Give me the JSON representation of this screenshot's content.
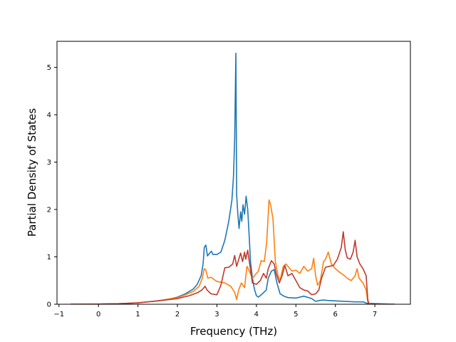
{
  "chart_data": {
    "type": "line",
    "title": "",
    "xlabel": "Frequency (THz)",
    "ylabel": "Partial Density of States",
    "xlim": [
      -1.05,
      7.9
    ],
    "ylim": [
      0,
      5.55
    ],
    "xticks": [
      -1,
      0,
      1,
      2,
      3,
      4,
      5,
      6,
      7
    ],
    "yticks": [
      0,
      1,
      2,
      3,
      4,
      5
    ],
    "grid": false,
    "legend": "none",
    "series": [
      {
        "color": "#1f77b4",
        "points": [
          [
            -0.7,
            0
          ],
          [
            0,
            0.003
          ],
          [
            0.5,
            0.01
          ],
          [
            1.0,
            0.03
          ],
          [
            1.5,
            0.07
          ],
          [
            1.8,
            0.11
          ],
          [
            2.0,
            0.15
          ],
          [
            2.2,
            0.22
          ],
          [
            2.4,
            0.32
          ],
          [
            2.5,
            0.42
          ],
          [
            2.6,
            0.6
          ],
          [
            2.65,
            0.85
          ],
          [
            2.68,
            1.2
          ],
          [
            2.72,
            1.25
          ],
          [
            2.76,
            1.02
          ],
          [
            2.82,
            1.08
          ],
          [
            2.86,
            1.12
          ],
          [
            2.9,
            1.05
          ],
          [
            3.0,
            1.05
          ],
          [
            3.1,
            1.1
          ],
          [
            3.2,
            1.35
          ],
          [
            3.3,
            1.75
          ],
          [
            3.38,
            2.2
          ],
          [
            3.42,
            2.7
          ],
          [
            3.45,
            3.5
          ],
          [
            3.48,
            5.3
          ],
          [
            3.5,
            2.3
          ],
          [
            3.53,
            1.9
          ],
          [
            3.56,
            1.6
          ],
          [
            3.6,
            1.95
          ],
          [
            3.63,
            1.75
          ],
          [
            3.66,
            2.1
          ],
          [
            3.7,
            1.9
          ],
          [
            3.74,
            2.28
          ],
          [
            3.78,
            2.0
          ],
          [
            3.82,
            1.4
          ],
          [
            3.85,
            0.9
          ],
          [
            3.9,
            0.55
          ],
          [
            3.95,
            0.32
          ],
          [
            4.0,
            0.18
          ],
          [
            4.05,
            0.15
          ],
          [
            4.15,
            0.22
          ],
          [
            4.25,
            0.3
          ],
          [
            4.3,
            0.55
          ],
          [
            4.38,
            0.7
          ],
          [
            4.45,
            0.73
          ],
          [
            4.52,
            0.45
          ],
          [
            4.6,
            0.22
          ],
          [
            4.7,
            0.17
          ],
          [
            4.8,
            0.14
          ],
          [
            5.0,
            0.13
          ],
          [
            5.2,
            0.17
          ],
          [
            5.4,
            0.12
          ],
          [
            5.5,
            0.06
          ],
          [
            5.6,
            0.08
          ],
          [
            5.7,
            0.09
          ],
          [
            5.8,
            0.08
          ],
          [
            6.0,
            0.07
          ],
          [
            6.5,
            0.05
          ],
          [
            6.7,
            0.05
          ],
          [
            6.8,
            0.02
          ],
          [
            7.5,
            0
          ]
        ]
      },
      {
        "color": "#ff7f0e",
        "points": [
          [
            -0.7,
            0
          ],
          [
            0,
            0.003
          ],
          [
            0.5,
            0.01
          ],
          [
            1.0,
            0.03
          ],
          [
            1.5,
            0.07
          ],
          [
            2.0,
            0.14
          ],
          [
            2.2,
            0.2
          ],
          [
            2.4,
            0.27
          ],
          [
            2.55,
            0.38
          ],
          [
            2.63,
            0.55
          ],
          [
            2.68,
            0.75
          ],
          [
            2.72,
            0.72
          ],
          [
            2.77,
            0.55
          ],
          [
            2.85,
            0.57
          ],
          [
            3.0,
            0.48
          ],
          [
            3.2,
            0.45
          ],
          [
            3.35,
            0.38
          ],
          [
            3.45,
            0.25
          ],
          [
            3.5,
            0.1
          ],
          [
            3.55,
            0.3
          ],
          [
            3.62,
            0.45
          ],
          [
            3.7,
            0.35
          ],
          [
            3.76,
            0.8
          ],
          [
            3.82,
            0.7
          ],
          [
            3.9,
            0.55
          ],
          [
            4.0,
            0.65
          ],
          [
            4.05,
            0.7
          ],
          [
            4.12,
            0.92
          ],
          [
            4.2,
            0.9
          ],
          [
            4.26,
            1.3
          ],
          [
            4.32,
            2.2
          ],
          [
            4.36,
            2.1
          ],
          [
            4.42,
            1.8
          ],
          [
            4.48,
            0.9
          ],
          [
            4.55,
            0.6
          ],
          [
            4.6,
            0.5
          ],
          [
            4.68,
            0.8
          ],
          [
            4.75,
            0.85
          ],
          [
            4.82,
            0.78
          ],
          [
            4.9,
            0.7
          ],
          [
            5.0,
            0.72
          ],
          [
            5.1,
            0.65
          ],
          [
            5.2,
            0.8
          ],
          [
            5.3,
            0.7
          ],
          [
            5.4,
            0.75
          ],
          [
            5.45,
            0.97
          ],
          [
            5.5,
            0.6
          ],
          [
            5.55,
            0.4
          ],
          [
            5.62,
            0.5
          ],
          [
            5.7,
            0.9
          ],
          [
            5.75,
            0.95
          ],
          [
            5.82,
            1.1
          ],
          [
            5.9,
            0.85
          ],
          [
            6.0,
            0.75
          ],
          [
            6.1,
            0.68
          ],
          [
            6.2,
            0.62
          ],
          [
            6.3,
            0.55
          ],
          [
            6.4,
            0.5
          ],
          [
            6.5,
            0.6
          ],
          [
            6.55,
            0.75
          ],
          [
            6.6,
            0.55
          ],
          [
            6.7,
            0.45
          ],
          [
            6.78,
            0.3
          ],
          [
            6.82,
            0.05
          ],
          [
            6.9,
            0
          ],
          [
            7.5,
            0
          ]
        ]
      },
      {
        "color": "#c0392b",
        "points": [
          [
            -0.7,
            0
          ],
          [
            0,
            0.003
          ],
          [
            0.5,
            0.01
          ],
          [
            1.0,
            0.03
          ],
          [
            1.5,
            0.07
          ],
          [
            2.0,
            0.12
          ],
          [
            2.3,
            0.18
          ],
          [
            2.5,
            0.24
          ],
          [
            2.62,
            0.3
          ],
          [
            2.7,
            0.38
          ],
          [
            2.75,
            0.3
          ],
          [
            2.85,
            0.22
          ],
          [
            3.0,
            0.2
          ],
          [
            3.1,
            0.4
          ],
          [
            3.2,
            0.77
          ],
          [
            3.3,
            0.78
          ],
          [
            3.4,
            0.85
          ],
          [
            3.45,
            1.03
          ],
          [
            3.5,
            0.8
          ],
          [
            3.6,
            1.08
          ],
          [
            3.65,
            0.9
          ],
          [
            3.7,
            1.1
          ],
          [
            3.73,
            0.95
          ],
          [
            3.78,
            1.14
          ],
          [
            3.82,
            0.9
          ],
          [
            3.9,
            0.45
          ],
          [
            4.0,
            0.42
          ],
          [
            4.1,
            0.5
          ],
          [
            4.18,
            0.65
          ],
          [
            4.25,
            0.55
          ],
          [
            4.3,
            0.75
          ],
          [
            4.38,
            0.92
          ],
          [
            4.45,
            0.85
          ],
          [
            4.5,
            0.65
          ],
          [
            4.58,
            0.45
          ],
          [
            4.65,
            0.6
          ],
          [
            4.72,
            0.82
          ],
          [
            4.8,
            0.6
          ],
          [
            4.9,
            0.65
          ],
          [
            5.0,
            0.5
          ],
          [
            5.1,
            0.35
          ],
          [
            5.2,
            0.3
          ],
          [
            5.3,
            0.28
          ],
          [
            5.4,
            0.2
          ],
          [
            5.5,
            0.22
          ],
          [
            5.58,
            0.3
          ],
          [
            5.65,
            0.55
          ],
          [
            5.75,
            0.78
          ],
          [
            5.85,
            0.8
          ],
          [
            5.95,
            0.82
          ],
          [
            6.05,
            0.95
          ],
          [
            6.15,
            1.2
          ],
          [
            6.2,
            1.53
          ],
          [
            6.25,
            1.15
          ],
          [
            6.3,
            0.98
          ],
          [
            6.38,
            0.95
          ],
          [
            6.45,
            1.1
          ],
          [
            6.5,
            1.35
          ],
          [
            6.55,
            1.0
          ],
          [
            6.62,
            0.85
          ],
          [
            6.7,
            0.75
          ],
          [
            6.78,
            0.6
          ],
          [
            6.82,
            0.1
          ],
          [
            6.85,
            0
          ],
          [
            7.5,
            0
          ]
        ]
      }
    ]
  }
}
